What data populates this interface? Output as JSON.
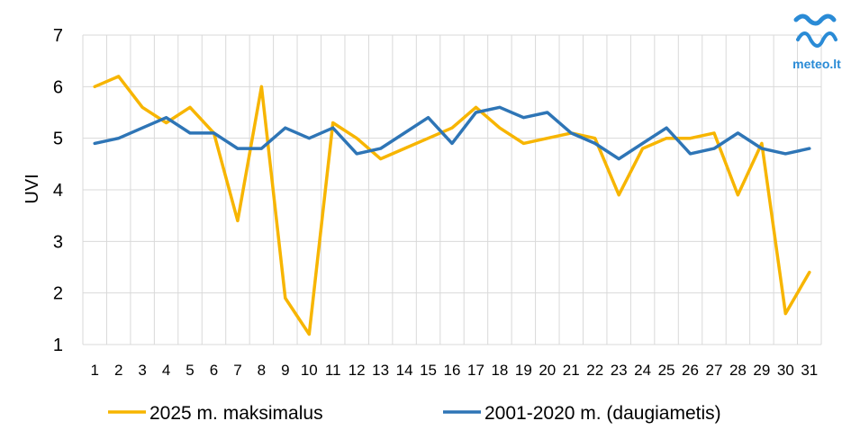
{
  "brand": {
    "logo_text": "meteo.lt"
  },
  "chart_data": {
    "type": "line",
    "title": "",
    "xlabel": "",
    "ylabel": "UVI",
    "ylim": [
      1,
      7
    ],
    "yticks": [
      1,
      2,
      3,
      4,
      5,
      6,
      7
    ],
    "grid": true,
    "legend_position": "bottom",
    "x": [
      1,
      2,
      3,
      4,
      5,
      6,
      7,
      8,
      9,
      10,
      11,
      12,
      13,
      14,
      15,
      16,
      17,
      18,
      19,
      20,
      21,
      22,
      23,
      24,
      25,
      26,
      27,
      28,
      29,
      30,
      31
    ],
    "series": [
      {
        "name": "2025 m. maksimalus",
        "color": "#f7b500",
        "values": [
          6.0,
          6.2,
          5.6,
          5.3,
          5.6,
          5.1,
          3.4,
          6.0,
          1.9,
          1.2,
          5.3,
          5.0,
          4.6,
          4.8,
          5.0,
          5.2,
          5.6,
          5.2,
          4.9,
          5.0,
          5.1,
          5.0,
          3.9,
          4.8,
          5.0,
          5.0,
          5.1,
          3.9,
          4.9,
          1.6,
          2.4
        ]
      },
      {
        "name": "2001-2020 m. (daugiametis)",
        "color": "#2e75b6",
        "values": [
          4.9,
          5.0,
          5.2,
          5.4,
          5.1,
          5.1,
          4.8,
          4.8,
          5.2,
          5.0,
          5.2,
          4.7,
          4.8,
          5.1,
          5.4,
          4.9,
          5.5,
          5.6,
          5.4,
          5.5,
          5.1,
          4.9,
          4.6,
          4.9,
          5.2,
          4.7,
          4.8,
          5.1,
          4.8,
          4.7,
          4.8
        ]
      }
    ]
  }
}
